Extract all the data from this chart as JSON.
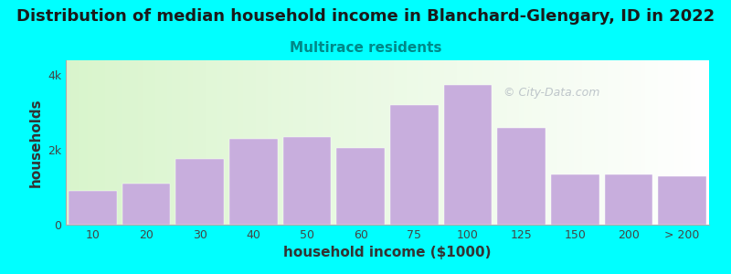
{
  "title": "Distribution of median household income in Blanchard-Glengary, ID in 2022",
  "subtitle": "Multirace residents",
  "xlabel": "household income ($1000)",
  "ylabel": "households",
  "background_color": "#00FFFF",
  "plot_bg_left": "#dff0d0",
  "plot_bg_right": "#ffffff",
  "bar_color": "#c8aedd",
  "categories": [
    "10",
    "20",
    "30",
    "40",
    "50",
    "60",
    "75",
    "100",
    "125",
    "150",
    "200",
    "> 200"
  ],
  "values": [
    900,
    1100,
    1750,
    2300,
    2350,
    2050,
    3200,
    3750,
    2600,
    1350,
    1350,
    1300
  ],
  "ylim": [
    0,
    4400
  ],
  "yticks": [
    0,
    2000,
    4000
  ],
  "ytick_labels": [
    "0",
    "2k",
    "4k"
  ],
  "title_fontsize": 13,
  "subtitle_fontsize": 11,
  "subtitle_color": "#008888",
  "axis_label_fontsize": 11,
  "tick_fontsize": 9,
  "watermark_text": "City-Data.com",
  "watermark_color": "#b0b8c0"
}
